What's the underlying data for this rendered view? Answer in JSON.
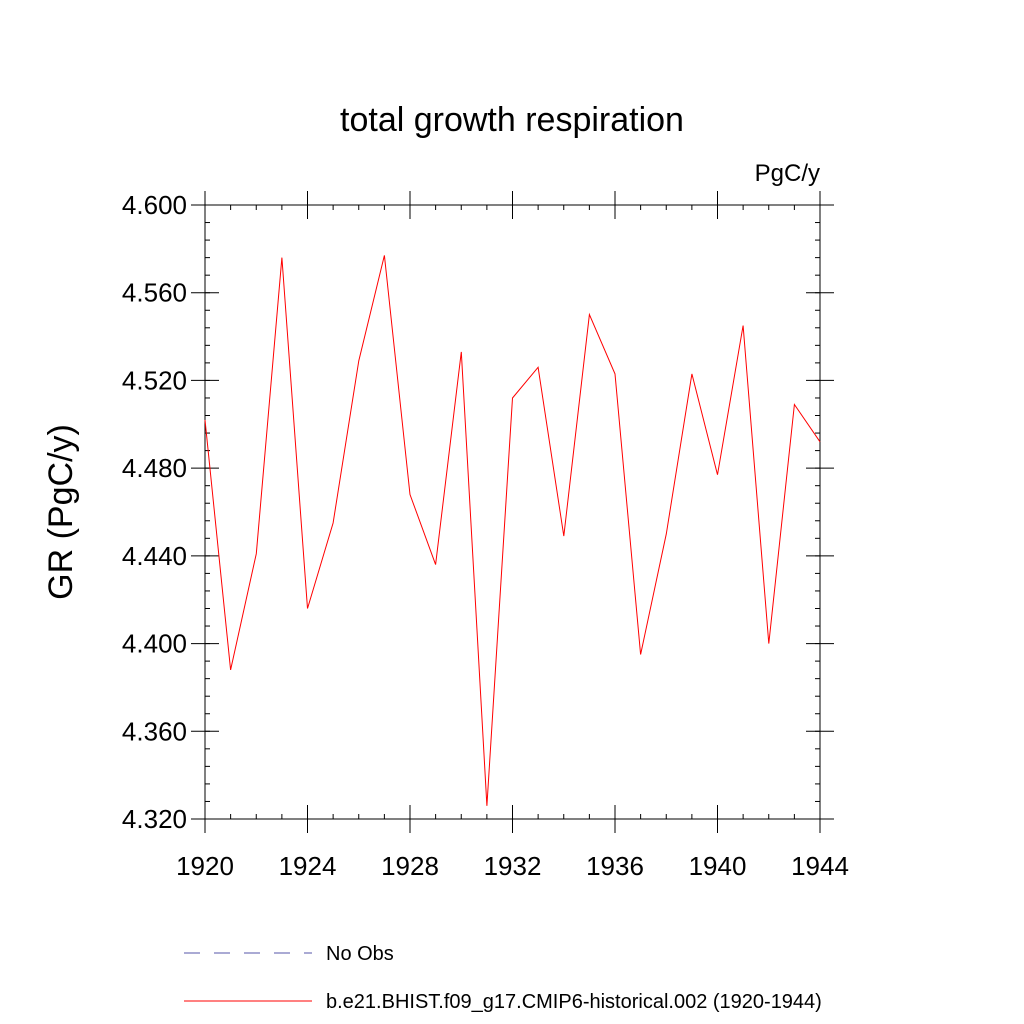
{
  "chart_data": {
    "type": "line",
    "title": "total growth respiration",
    "units_label": "PgC/y",
    "ylabel": "GR  (PgC/y)",
    "xlabel": "",
    "xlim": [
      1920,
      1944
    ],
    "ylim": [
      4.32,
      4.6
    ],
    "x_ticks": [
      {
        "value": 1920,
        "label": "1920"
      },
      {
        "value": 1924,
        "label": "1924"
      },
      {
        "value": 1928,
        "label": "1928"
      },
      {
        "value": 1932,
        "label": "1932"
      },
      {
        "value": 1936,
        "label": "1936"
      },
      {
        "value": 1940,
        "label": "1940"
      },
      {
        "value": 1944,
        "label": "1944"
      }
    ],
    "y_ticks": [
      {
        "value": 4.32,
        "label": "4.320"
      },
      {
        "value": 4.36,
        "label": "4.360"
      },
      {
        "value": 4.4,
        "label": "4.400"
      },
      {
        "value": 4.44,
        "label": "4.440"
      },
      {
        "value": 4.48,
        "label": "4.480"
      },
      {
        "value": 4.52,
        "label": "4.520"
      },
      {
        "value": 4.56,
        "label": "4.560"
      },
      {
        "value": 4.6,
        "label": "4.600"
      }
    ],
    "grid": false,
    "legend_position": "bottom",
    "series": [
      {
        "name": "b.e21.BHIST.f09_g17.CMIP6-historical.002 (1920-1944)",
        "color": "#ff0000",
        "style": "solid",
        "x": [
          1920,
          1921,
          1922,
          1923,
          1924,
          1925,
          1926,
          1927,
          1928,
          1929,
          1930,
          1931,
          1932,
          1933,
          1934,
          1935,
          1936,
          1937,
          1938,
          1939,
          1940,
          1941,
          1942,
          1943,
          1944
        ],
        "y": [
          4.502,
          4.388,
          4.441,
          4.576,
          4.416,
          4.455,
          4.529,
          4.577,
          4.468,
          4.436,
          4.533,
          4.326,
          4.512,
          4.526,
          4.449,
          4.55,
          4.523,
          4.395,
          4.45,
          4.523,
          4.477,
          4.545,
          4.4,
          4.509,
          4.492
        ]
      }
    ],
    "legend": [
      {
        "label": "No Obs",
        "color": "#5555aa",
        "style": "dashed"
      },
      {
        "label": "b.e21.BHIST.f09_g17.CMIP6-historical.002 (1920-1944)",
        "color": "#ff0000",
        "style": "solid"
      }
    ]
  }
}
